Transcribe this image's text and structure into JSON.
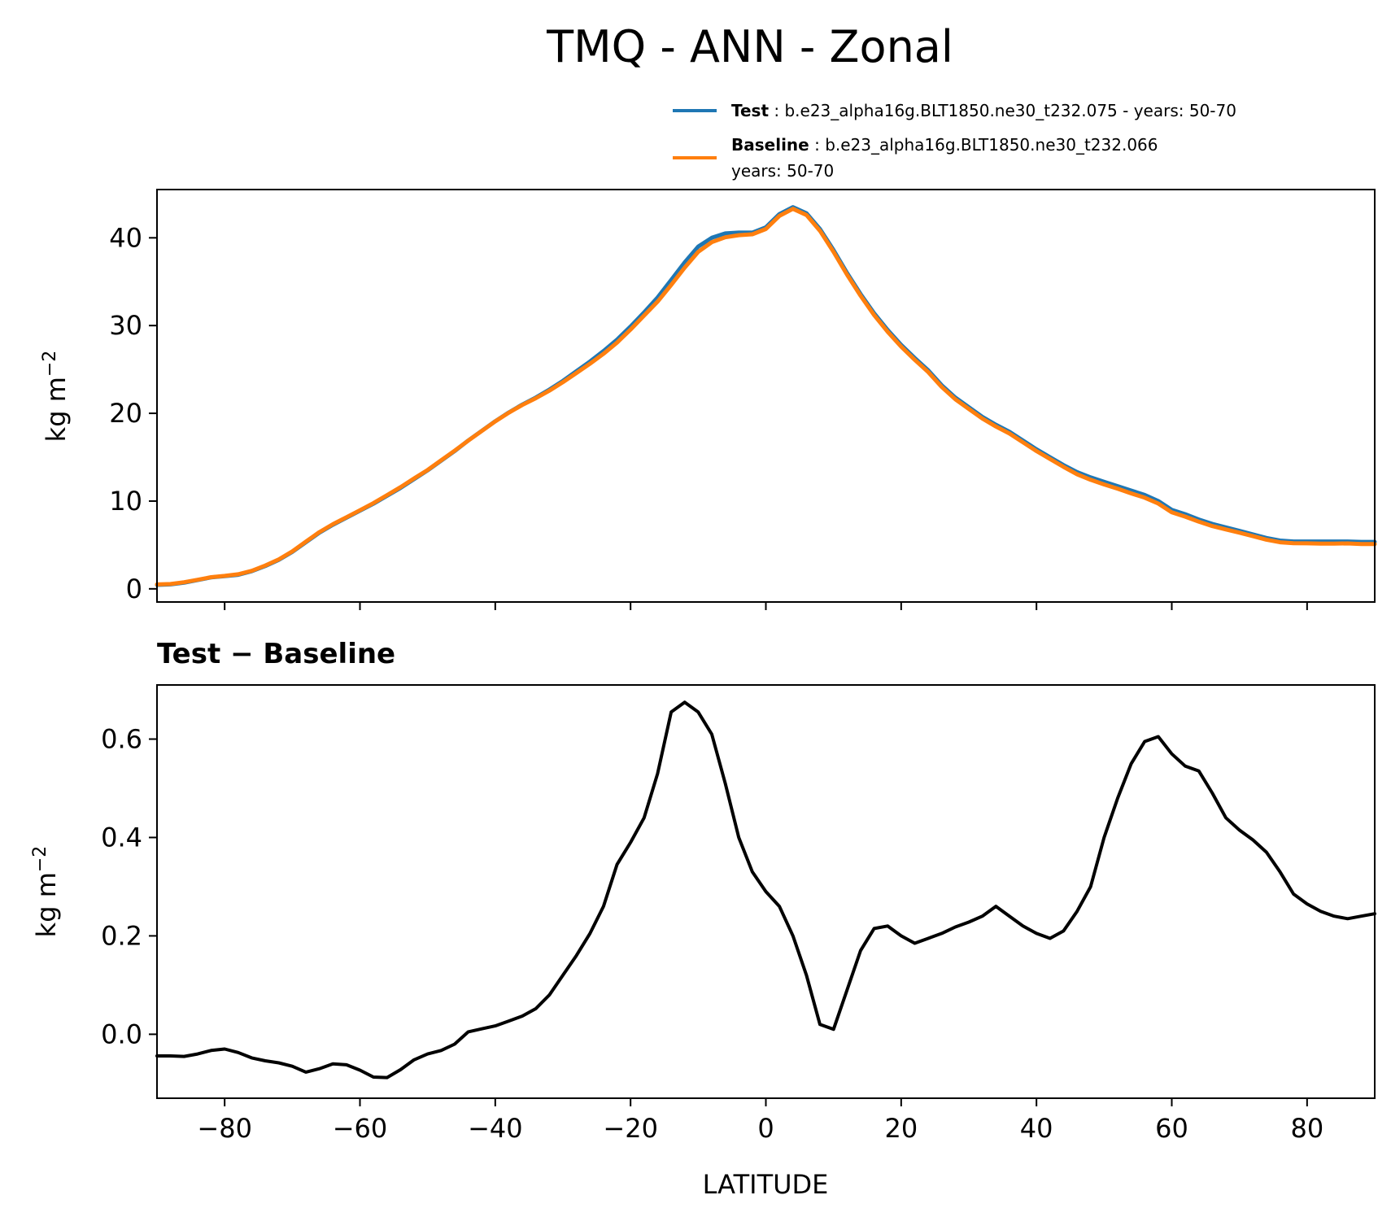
{
  "title": "TMQ - ANN - Zonal",
  "chart_data": [
    {
      "type": "line",
      "xlabel": "",
      "ylabel": "kg m",
      "ylabel_sup": "−2",
      "xlim": [
        -90,
        90
      ],
      "ylim": [
        -1.5,
        45.5
      ],
      "xticks": [
        -80,
        -60,
        -40,
        -20,
        0,
        20,
        40,
        60,
        80
      ],
      "yticks": [
        0,
        10,
        20,
        30,
        40
      ],
      "ytick_labels": [
        "0",
        "10",
        "20",
        "30",
        "40"
      ],
      "legend": {
        "placement": "above-right",
        "entries": [
          {
            "name_bold": "Test",
            "sep": " : ",
            "text": "b.e23_alpha16g.BLT1850.ne30_t232.075 - years: 50-70",
            "line2": "",
            "color": "#1f77b4"
          },
          {
            "name_bold": "Baseline",
            "sep": " : ",
            "text": "b.e23_alpha16g.BLT1850.ne30_t232.066",
            "line2": "years: 50-70",
            "color": "#ff7f0e"
          }
        ]
      },
      "series": [
        {
          "name": "Test",
          "color": "#1f77b4",
          "x": [
            -90,
            -88,
            -86,
            -84,
            -82,
            -80,
            -78,
            -76,
            -74,
            -72,
            -70,
            -68,
            -66,
            -64,
            -62,
            -60,
            -58,
            -56,
            -54,
            -52,
            -50,
            -48,
            -46,
            -44,
            -42,
            -40,
            -38,
            -36,
            -34,
            -32,
            -30,
            -28,
            -26,
            -24,
            -22,
            -20,
            -18,
            -16,
            -14,
            -12,
            -10,
            -8,
            -6,
            -4,
            -2,
            0,
            2,
            4,
            6,
            8,
            10,
            12,
            14,
            16,
            18,
            20,
            22,
            24,
            26,
            28,
            30,
            32,
            34,
            36,
            38,
            40,
            42,
            44,
            46,
            48,
            50,
            52,
            54,
            56,
            58,
            60,
            62,
            64,
            66,
            68,
            70,
            72,
            74,
            76,
            78,
            80,
            82,
            84,
            86,
            88,
            90
          ],
          "values": [
            0.45,
            0.5,
            0.7,
            1.0,
            1.3,
            1.45,
            1.6,
            2.0,
            2.6,
            3.3,
            4.2,
            5.3,
            6.4,
            7.3,
            8.1,
            8.9,
            9.7,
            10.6,
            11.5,
            12.5,
            13.5,
            14.6,
            15.7,
            16.9,
            18.0,
            19.1,
            20.1,
            21.0,
            21.8,
            22.7,
            23.7,
            24.8,
            25.9,
            27.1,
            28.4,
            29.9,
            31.5,
            33.2,
            35.2,
            37.2,
            39.0,
            40.0,
            40.5,
            40.6,
            40.6,
            41.2,
            42.7,
            43.5,
            42.8,
            41.0,
            38.6,
            36.0,
            33.6,
            31.4,
            29.5,
            27.8,
            26.3,
            24.9,
            23.2,
            21.8,
            20.7,
            19.6,
            18.7,
            17.9,
            16.9,
            15.9,
            15.0,
            14.1,
            13.3,
            12.7,
            12.2,
            11.7,
            11.2,
            10.7,
            10.0,
            9.0,
            8.5,
            7.9,
            7.4,
            7.0,
            6.6,
            6.2,
            5.8,
            5.5,
            5.4,
            5.4,
            5.4,
            5.4,
            5.4,
            5.35,
            5.35
          ]
        },
        {
          "name": "Baseline",
          "color": "#ff7f0e",
          "x": [
            -90,
            -88,
            -86,
            -84,
            -82,
            -80,
            -78,
            -76,
            -74,
            -72,
            -70,
            -68,
            -66,
            -64,
            -62,
            -60,
            -58,
            -56,
            -54,
            -52,
            -50,
            -48,
            -46,
            -44,
            -42,
            -40,
            -38,
            -36,
            -34,
            -32,
            -30,
            -28,
            -26,
            -24,
            -22,
            -20,
            -18,
            -16,
            -14,
            -12,
            -10,
            -8,
            -6,
            -4,
            -2,
            0,
            2,
            4,
            6,
            8,
            10,
            12,
            14,
            16,
            18,
            20,
            22,
            24,
            26,
            28,
            30,
            32,
            34,
            36,
            38,
            40,
            42,
            44,
            46,
            48,
            50,
            52,
            54,
            56,
            58,
            60,
            62,
            64,
            66,
            68,
            70,
            72,
            74,
            76,
            78,
            80,
            82,
            84,
            86,
            88,
            90
          ],
          "values": [
            0.5,
            0.55,
            0.75,
            1.03,
            1.33,
            1.48,
            1.66,
            2.05,
            2.65,
            3.36,
            4.27,
            5.38,
            6.46,
            7.36,
            8.16,
            8.96,
            9.77,
            10.68,
            11.59,
            12.58,
            13.55,
            14.65,
            15.74,
            16.89,
            17.99,
            19.08,
            20.07,
            20.95,
            21.72,
            22.58,
            23.55,
            24.6,
            25.65,
            26.78,
            28.05,
            29.55,
            31.14,
            32.73,
            34.63,
            36.6,
            38.4,
            39.5,
            40.06,
            40.3,
            40.4,
            41.0,
            42.5,
            43.3,
            42.6,
            40.8,
            38.4,
            35.8,
            33.4,
            31.2,
            29.3,
            27.6,
            26.1,
            24.7,
            23.0,
            21.6,
            20.5,
            19.4,
            18.5,
            17.7,
            16.7,
            15.7,
            14.8,
            13.9,
            13.05,
            12.42,
            11.9,
            11.4,
            10.88,
            10.38,
            9.72,
            8.72,
            8.22,
            7.65,
            7.15,
            6.77,
            6.4,
            6.0,
            5.6,
            5.3,
            5.2,
            5.18,
            5.15,
            5.16,
            5.17,
            5.11,
            5.1
          ]
        }
      ]
    },
    {
      "type": "line",
      "title": "Test − Baseline",
      "xlabel": "LATITUDE",
      "ylabel": "kg m",
      "ylabel_sup": "−2",
      "xlim": [
        -90,
        90
      ],
      "ylim": [
        -0.13,
        0.71
      ],
      "xticks": [
        -80,
        -60,
        -40,
        -20,
        0,
        20,
        40,
        60,
        80
      ],
      "xtick_labels": [
        "−80",
        "−60",
        "−40",
        "−20",
        "0",
        "20",
        "40",
        "60",
        "80"
      ],
      "yticks": [
        0.0,
        0.2,
        0.4,
        0.6
      ],
      "ytick_labels": [
        "0.0",
        "0.2",
        "0.4",
        "0.6"
      ],
      "series": [
        {
          "name": "Test − Baseline",
          "color": "#000000",
          "x": [
            -90,
            -88,
            -86,
            -84,
            -82,
            -80,
            -78,
            -76,
            -74,
            -72,
            -70,
            -68,
            -66,
            -64,
            -62,
            -60,
            -58,
            -56,
            -54,
            -52,
            -50,
            -48,
            -46,
            -44,
            -42,
            -40,
            -38,
            -36,
            -34,
            -32,
            -30,
            -28,
            -26,
            -24,
            -22,
            -20,
            -18,
            -16,
            -14,
            -12,
            -10,
            -8,
            -6,
            -4,
            -2,
            0,
            2,
            4,
            6,
            8,
            10,
            12,
            14,
            16,
            18,
            20,
            22,
            24,
            26,
            28,
            30,
            32,
            34,
            36,
            38,
            40,
            42,
            44,
            46,
            48,
            50,
            52,
            54,
            56,
            58,
            60,
            62,
            64,
            66,
            68,
            70,
            72,
            74,
            76,
            78,
            80,
            82,
            84,
            86,
            88,
            90
          ],
          "values": [
            -0.044,
            -0.044,
            -0.045,
            -0.04,
            -0.033,
            -0.03,
            -0.037,
            -0.048,
            -0.054,
            -0.058,
            -0.065,
            -0.077,
            -0.07,
            -0.06,
            -0.062,
            -0.073,
            -0.087,
            -0.088,
            -0.072,
            -0.052,
            -0.04,
            -0.033,
            -0.02,
            0.005,
            0.011,
            0.017,
            0.027,
            0.037,
            0.052,
            0.08,
            0.12,
            0.16,
            0.205,
            0.26,
            0.345,
            0.39,
            0.44,
            0.53,
            0.655,
            0.675,
            0.655,
            0.61,
            0.51,
            0.4,
            0.33,
            0.29,
            0.26,
            0.2,
            0.12,
            0.02,
            0.01,
            0.09,
            0.17,
            0.215,
            0.22,
            0.2,
            0.185,
            0.195,
            0.205,
            0.218,
            0.228,
            0.24,
            0.26,
            0.24,
            0.22,
            0.205,
            0.195,
            0.21,
            0.25,
            0.3,
            0.4,
            0.48,
            0.55,
            0.595,
            0.605,
            0.57,
            0.545,
            0.535,
            0.49,
            0.44,
            0.415,
            0.395,
            0.37,
            0.33,
            0.285,
            0.265,
            0.25,
            0.24,
            0.235,
            0.24,
            0.245
          ]
        }
      ]
    }
  ]
}
